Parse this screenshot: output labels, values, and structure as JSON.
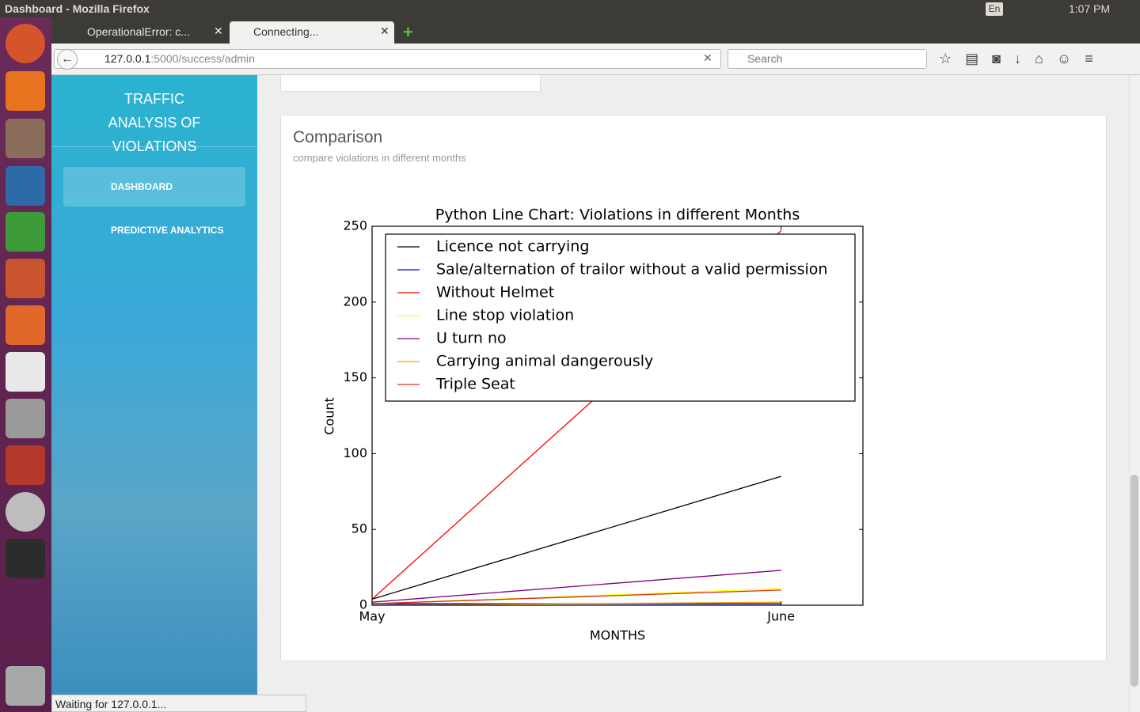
{
  "window_title": "Dashboard - Mozilla Firefox",
  "tray": {
    "keyboard": "En",
    "time": "1:07 PM"
  },
  "tabs": [
    {
      "title": "OperationalError: c..."
    },
    {
      "title": "Connecting..."
    }
  ],
  "url": {
    "host": "127.0.0.1",
    "path": ":5000/success/admin"
  },
  "search_placeholder": "Search",
  "sidebar": {
    "brand": "TRAFFIC ANALYSIS OF VIOLATIONS",
    "nav": [
      "DASHBOARD",
      "PREDICTIVE ANALYTICS"
    ]
  },
  "card": {
    "title": "Comparison",
    "subtitle": "compare violations in different months"
  },
  "status": "Waiting for 127.0.0.1...",
  "chart_data": {
    "type": "line",
    "title": "Python Line Chart: Violations in different Months",
    "x_label": "MONTHS",
    "y_label": "Count",
    "x": [
      0,
      1
    ],
    "xlim": [
      0,
      1.2
    ],
    "xticks": [
      {
        "value": 0,
        "label": "May"
      },
      {
        "value": 1,
        "label": "June"
      }
    ],
    "ylim": [
      0,
      250
    ],
    "yticks": [
      0,
      50,
      100,
      150,
      200,
      250
    ],
    "legend": "upper left",
    "series": [
      {
        "name": "Licence not carrying",
        "color": "#000000",
        "values": [
          4,
          85
        ]
      },
      {
        "name": "Sale/alternation of trailor without a valid permission",
        "color": "#0000ff",
        "values": [
          1,
          1
        ]
      },
      {
        "name": "Without Helmet",
        "color": "#ff0000",
        "values": [
          4,
          247
        ]
      },
      {
        "name": "Line stop violation",
        "color": "#ffff00",
        "values": [
          1,
          11
        ]
      },
      {
        "name": "U turn no",
        "color": "#800080",
        "values": [
          2,
          23
        ]
      },
      {
        "name": "Carrying animal dangerously",
        "color": "#ffa500",
        "values": [
          0,
          2
        ]
      },
      {
        "name": "Triple Seat",
        "color": "#d03020",
        "values": [
          1,
          10
        ]
      }
    ]
  }
}
